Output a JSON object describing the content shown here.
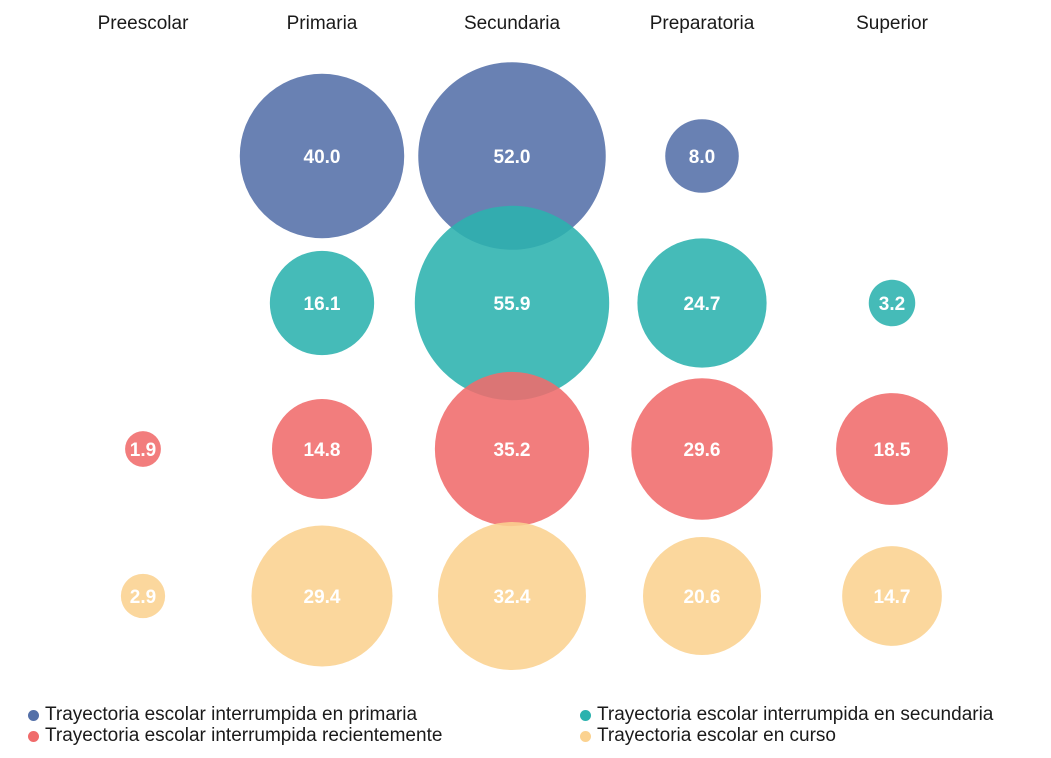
{
  "chart_data": {
    "type": "bubble",
    "categories": [
      "Preescolar",
      "Primaria",
      "Secundaria",
      "Preparatoria",
      "Superior"
    ],
    "series": [
      {
        "name": "Trayectoria escolar interrumpida en primaria",
        "color": "#5470A8",
        "values": [
          null,
          40.0,
          52.0,
          8.0,
          null
        ]
      },
      {
        "name": "Trayectoria escolar interrumpida en secundaria",
        "color": "#2BB2AE",
        "values": [
          null,
          16.1,
          55.9,
          24.7,
          3.2
        ]
      },
      {
        "name": "Trayectoria escolar interrumpida recientemente",
        "color": "#F06B6B",
        "values": [
          1.9,
          14.8,
          35.2,
          29.6,
          18.5
        ]
      },
      {
        "name": "Trayectoria escolar en curso",
        "color": "#FBD290",
        "values": [
          2.9,
          29.4,
          32.4,
          20.6,
          14.7
        ]
      }
    ],
    "value_labels": [
      [
        null,
        "40.0",
        "52.0",
        "8.0",
        null
      ],
      [
        null,
        "16.1",
        "55.9",
        "24.7",
        "3.2"
      ],
      [
        "1.9",
        "14.8",
        "35.2",
        "29.6",
        "18.5"
      ],
      [
        "2.9",
        "29.4",
        "32.4",
        "20.6",
        "14.7"
      ]
    ],
    "legend_position": "bottom"
  }
}
